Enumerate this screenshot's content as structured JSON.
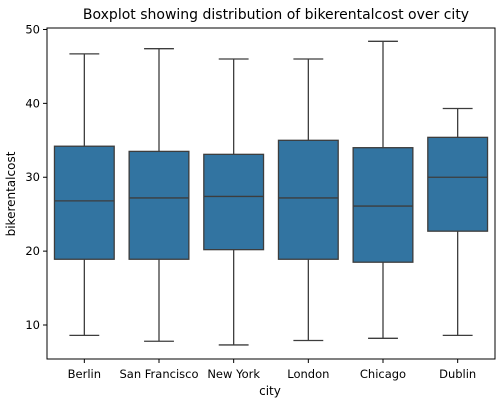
{
  "chart_data": {
    "type": "boxplot",
    "title": "Boxplot showing distribution of bikerentalcost over city",
    "xlabel": "city",
    "ylabel": "bikerentalcost",
    "ylim": [
      5.4,
      50.2
    ],
    "yticks": [
      10,
      20,
      30,
      40,
      50
    ],
    "grid": false,
    "legend": "none",
    "box_color": "#3274a1",
    "line_color": "#3d3d3d",
    "categories": [
      "Berlin",
      "San Francisco",
      "New York",
      "London",
      "Chicago",
      "Dublin"
    ],
    "boxes": [
      {
        "min": 8.6,
        "q1": 18.9,
        "median": 26.8,
        "q3": 34.2,
        "max": 46.7
      },
      {
        "min": 7.8,
        "q1": 18.9,
        "median": 27.2,
        "q3": 33.5,
        "max": 47.4
      },
      {
        "min": 7.3,
        "q1": 20.2,
        "median": 27.4,
        "q3": 33.1,
        "max": 46.0
      },
      {
        "min": 7.9,
        "q1": 18.9,
        "median": 27.2,
        "q3": 35.0,
        "max": 46.0
      },
      {
        "min": 8.2,
        "q1": 18.5,
        "median": 26.1,
        "q3": 34.0,
        "max": 48.4
      },
      {
        "min": 8.6,
        "q1": 22.7,
        "median": 30.0,
        "q3": 35.4,
        "max": 39.3
      }
    ]
  }
}
